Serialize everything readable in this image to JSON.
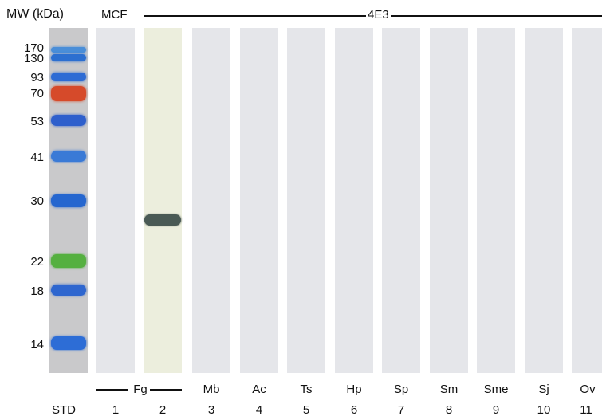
{
  "header": {
    "mw_title": "MW (kDa)",
    "control_label": "MCF",
    "antibody_label": "4E3"
  },
  "ladder": {
    "markers": [
      "170",
      "130",
      "93",
      "70",
      "53",
      "41",
      "30",
      "22",
      "18",
      "14"
    ],
    "band_colors": [
      "#4a8ed8",
      "#2c6fd0",
      "#2d6bd4",
      "#d64a2a",
      "#2e5fcc",
      "#3a7ad6",
      "#2566cf",
      "#55b040",
      "#2e66cf",
      "#2d6dd6"
    ]
  },
  "antigens": [
    "Fg",
    "Mb",
    "Ac",
    "Ts",
    "Hp",
    "Sp",
    "Sm",
    "Sme",
    "Sj",
    "Ov"
  ],
  "lanes": [
    "STD",
    "1",
    "2",
    "3",
    "4",
    "5",
    "6",
    "7",
    "8",
    "9",
    "10",
    "11"
  ],
  "band_lane": "2",
  "band_color": "#4a5a55",
  "strip_color": "#e5e6ea"
}
